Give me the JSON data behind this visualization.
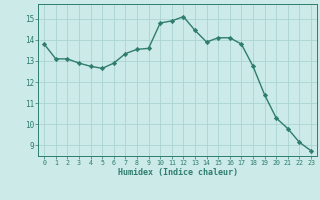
{
  "x": [
    0,
    1,
    2,
    3,
    4,
    5,
    6,
    7,
    8,
    9,
    10,
    11,
    12,
    13,
    14,
    15,
    16,
    17,
    18,
    19,
    20,
    21,
    22,
    23
  ],
  "y": [
    13.8,
    13.1,
    13.1,
    12.9,
    12.75,
    12.65,
    12.9,
    13.35,
    13.55,
    13.6,
    14.8,
    14.9,
    15.1,
    14.45,
    13.9,
    14.1,
    14.1,
    13.8,
    12.75,
    11.4,
    10.3,
    9.8,
    9.15,
    8.75
  ],
  "xlabel": "Humidex (Indice chaleur)",
  "ylim_bottom": 8.5,
  "ylim_top": 15.7,
  "yticks": [
    9,
    10,
    11,
    12,
    13,
    14,
    15
  ],
  "xticks": [
    0,
    1,
    2,
    3,
    4,
    5,
    6,
    7,
    8,
    9,
    10,
    11,
    12,
    13,
    14,
    15,
    16,
    17,
    18,
    19,
    20,
    21,
    22,
    23
  ],
  "line_color": "#2e7d6d",
  "bg_color": "#cceae8",
  "grid_color": "#aad4d0",
  "tick_color": "#2e7d6d",
  "label_color": "#2e7d6d",
  "spine_color": "#2e7d6d"
}
